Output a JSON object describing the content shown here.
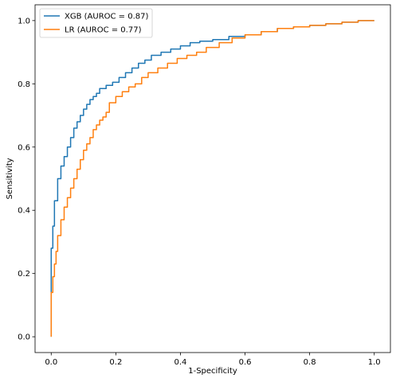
{
  "chart_data": {
    "type": "line",
    "title": "",
    "xlabel": "1-Specificity",
    "ylabel": "Sensitivity",
    "xlim": [
      -0.05,
      1.05
    ],
    "ylim": [
      -0.05,
      1.05
    ],
    "x_ticks": [
      0.0,
      0.2,
      0.4,
      0.6,
      0.8,
      1.0
    ],
    "x_tick_labels": [
      "0.0",
      "0.2",
      "0.4",
      "0.6",
      "0.8",
      "1.0"
    ],
    "y_ticks": [
      0.0,
      0.2,
      0.4,
      0.6,
      0.8,
      1.0
    ],
    "y_tick_labels": [
      "0.0",
      "0.2",
      "0.4",
      "0.6",
      "0.8",
      "1.0"
    ],
    "grid": false,
    "legend_position": "top-left",
    "series": [
      {
        "name": "XGB (AUROC = 0.87)",
        "color": "#1f77b4",
        "x": [
          0.0,
          0.0,
          0.005,
          0.01,
          0.02,
          0.03,
          0.04,
          0.05,
          0.06,
          0.07,
          0.08,
          0.09,
          0.1,
          0.11,
          0.12,
          0.13,
          0.14,
          0.15,
          0.17,
          0.19,
          0.21,
          0.23,
          0.25,
          0.27,
          0.29,
          0.31,
          0.34,
          0.37,
          0.4,
          0.43,
          0.46,
          0.5,
          0.55,
          0.6,
          0.65,
          0.7,
          0.75,
          0.8,
          0.85,
          0.9,
          0.95,
          1.0
        ],
        "y": [
          0.0,
          0.16,
          0.28,
          0.35,
          0.43,
          0.5,
          0.54,
          0.57,
          0.6,
          0.63,
          0.66,
          0.68,
          0.7,
          0.72,
          0.735,
          0.75,
          0.76,
          0.77,
          0.785,
          0.795,
          0.805,
          0.82,
          0.835,
          0.85,
          0.865,
          0.875,
          0.89,
          0.9,
          0.91,
          0.92,
          0.93,
          0.935,
          0.94,
          0.95,
          0.955,
          0.965,
          0.975,
          0.98,
          0.985,
          0.99,
          0.995,
          1.0
        ]
      },
      {
        "name": "LR (AUROC = 0.77)",
        "color": "#ff7f0e",
        "x": [
          0.0,
          0.0,
          0.005,
          0.01,
          0.015,
          0.02,
          0.03,
          0.04,
          0.05,
          0.06,
          0.07,
          0.08,
          0.09,
          0.1,
          0.11,
          0.12,
          0.13,
          0.14,
          0.15,
          0.16,
          0.17,
          0.18,
          0.2,
          0.22,
          0.24,
          0.26,
          0.28,
          0.3,
          0.33,
          0.36,
          0.39,
          0.42,
          0.45,
          0.48,
          0.52,
          0.56,
          0.6,
          0.65,
          0.7,
          0.75,
          0.8,
          0.85,
          0.9,
          0.95,
          1.0
        ],
        "y": [
          0.0,
          0.08,
          0.14,
          0.19,
          0.23,
          0.27,
          0.32,
          0.37,
          0.41,
          0.44,
          0.47,
          0.5,
          0.53,
          0.56,
          0.59,
          0.61,
          0.63,
          0.655,
          0.67,
          0.685,
          0.695,
          0.71,
          0.74,
          0.76,
          0.775,
          0.79,
          0.8,
          0.82,
          0.835,
          0.85,
          0.865,
          0.88,
          0.89,
          0.9,
          0.915,
          0.93,
          0.945,
          0.955,
          0.965,
          0.975,
          0.98,
          0.985,
          0.99,
          0.995,
          1.0
        ]
      }
    ]
  }
}
